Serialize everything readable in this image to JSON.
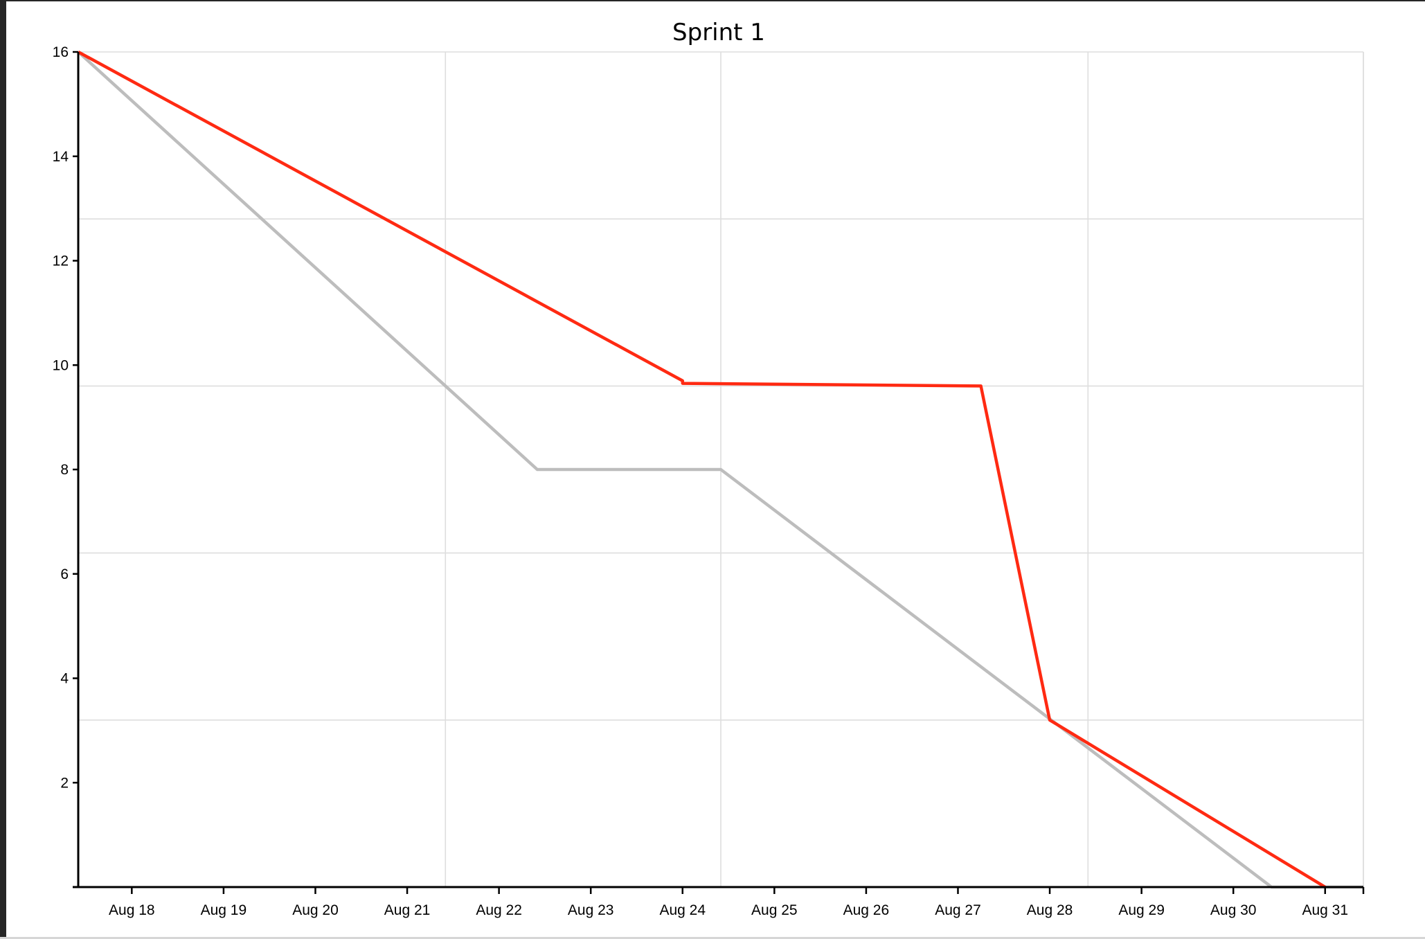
{
  "chart_data": {
    "type": "line",
    "title": "Sprint 1",
    "xlabel": "",
    "ylabel": "",
    "x_domain": [
      "2019-08-17T10:00",
      "2019-08-31T10:00"
    ],
    "ylim": [
      0,
      16
    ],
    "y_ticks": [
      2,
      4,
      6,
      8,
      10,
      12,
      14,
      16
    ],
    "y_grid": [
      3.2,
      6.4,
      9.6,
      12.8,
      16
    ],
    "x_grid": [
      "2019-08-21T10:00",
      "2019-08-24T10:00",
      "2019-08-28T10:00",
      "2019-08-31T10:00"
    ],
    "x_ticks": [
      {
        "date": "2019-08-18",
        "label": "Aug 18"
      },
      {
        "date": "2019-08-19",
        "label": "Aug 19"
      },
      {
        "date": "2019-08-20",
        "label": "Aug 20"
      },
      {
        "date": "2019-08-21",
        "label": "Aug 21"
      },
      {
        "date": "2019-08-22",
        "label": "Aug 22"
      },
      {
        "date": "2019-08-23",
        "label": "Aug 23"
      },
      {
        "date": "2019-08-24",
        "label": "Aug 24"
      },
      {
        "date": "2019-08-25",
        "label": "Aug 25"
      },
      {
        "date": "2019-08-26",
        "label": "Aug 26"
      },
      {
        "date": "2019-08-27",
        "label": "Aug 27"
      },
      {
        "date": "2019-08-28",
        "label": "Aug 28"
      },
      {
        "date": "2019-08-29",
        "label": "Aug 29"
      },
      {
        "date": "2019-08-30",
        "label": "Aug 30"
      },
      {
        "date": "2019-08-31",
        "label": "Aug 31"
      }
    ],
    "series": [
      {
        "color": "#bdbdbd",
        "points": [
          {
            "x": "2019-08-17T10:00",
            "y": 16
          },
          {
            "x": "2019-08-22T10:00",
            "y": 8
          },
          {
            "x": "2019-08-24T10:00",
            "y": 8
          },
          {
            "x": "2019-08-30T10:00",
            "y": 0
          },
          {
            "x": "2019-08-31T10:00",
            "y": 0
          }
        ]
      },
      {
        "color": "#ff2a12",
        "points": [
          {
            "x": "2019-08-17T10:00",
            "y": 16
          },
          {
            "x": "2019-08-24T00:00",
            "y": 9.7
          },
          {
            "x": "2019-08-24T00:00",
            "y": 9.65
          },
          {
            "x": "2019-08-27T06:00",
            "y": 9.6
          },
          {
            "x": "2019-08-28T00:00",
            "y": 3.2
          },
          {
            "x": "2019-08-31T00:00",
            "y": 0
          }
        ]
      }
    ]
  }
}
